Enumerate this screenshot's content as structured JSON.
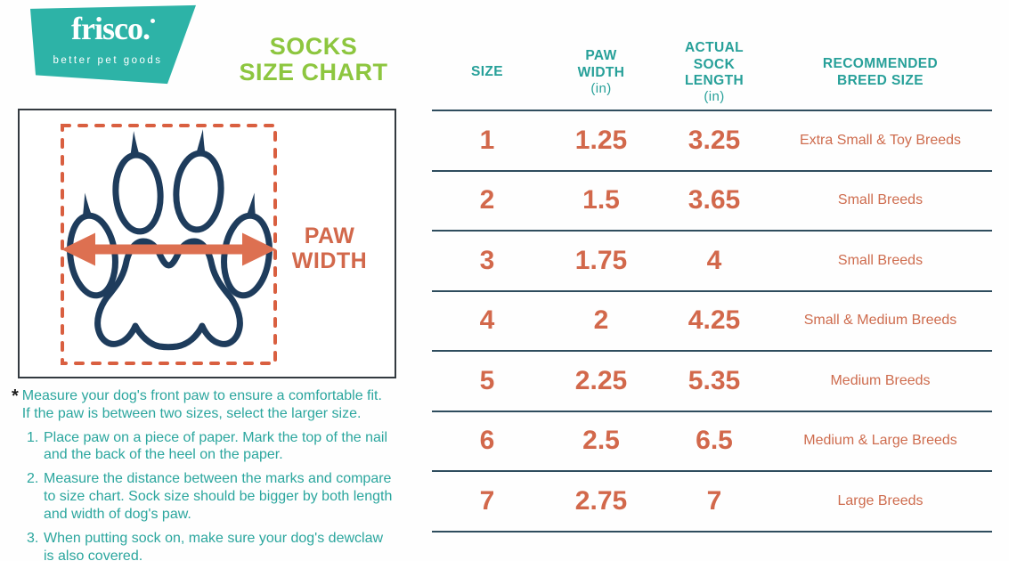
{
  "brand": {
    "name": "frisco.",
    "tagline": "better pet goods"
  },
  "title": {
    "line1": "SOCKS",
    "line2": "SIZE CHART"
  },
  "diagram": {
    "label_line1": "PAW",
    "label_line2": "WIDTH"
  },
  "notes": {
    "marker": "*",
    "intro_lines": [
      "Measure your dog's front paw to ensure a comfortable fit.",
      "If the paw is between two sizes, select the larger size."
    ],
    "steps": [
      [
        "Place paw on a piece of paper. Mark the top of the nail",
        "and the back of the heel on the paper."
      ],
      [
        "Measure the distance between the marks and compare",
        "to size chart. Sock size should be bigger by both length",
        "and width of dog's paw."
      ],
      [
        "When putting sock on, make sure your dog's dewclaw",
        "is also covered."
      ]
    ]
  },
  "table": {
    "columns": [
      {
        "label": "SIZE",
        "sub": ""
      },
      {
        "label": "PAW WIDTH",
        "sub": "(in)"
      },
      {
        "label": "ACTUAL SOCK LENGTH",
        "sub": "(in)"
      },
      {
        "label": "RECOMMENDED BREED SIZE",
        "sub": ""
      }
    ],
    "rows": [
      {
        "size": "1",
        "paw_width": "1.25",
        "sock_length": "3.25",
        "breed": "Extra Small & Toy Breeds"
      },
      {
        "size": "2",
        "paw_width": "1.5",
        "sock_length": "3.65",
        "breed": "Small Breeds"
      },
      {
        "size": "3",
        "paw_width": "1.75",
        "sock_length": "4",
        "breed": "Small Breeds"
      },
      {
        "size": "4",
        "paw_width": "2",
        "sock_length": "4.25",
        "breed": "Small & Medium Breeds"
      },
      {
        "size": "5",
        "paw_width": "2.25",
        "sock_length": "5.35",
        "breed": "Medium Breeds"
      },
      {
        "size": "6",
        "paw_width": "2.5",
        "sock_length": "6.5",
        "breed": "Medium & Large Breeds"
      },
      {
        "size": "7",
        "paw_width": "2.75",
        "sock_length": "7",
        "breed": "Large Breeds"
      }
    ]
  },
  "colors": {
    "logo_teal": "#2DB3A7",
    "text_teal": "#27A099",
    "title_green": "#8DC63F",
    "value_orange": "#D2684B",
    "arrow_orange": "#DD7051",
    "dashed_orange": "#D95F40",
    "paw_navy": "#1E3C5C",
    "divider_navy": "#2F4D5E"
  }
}
